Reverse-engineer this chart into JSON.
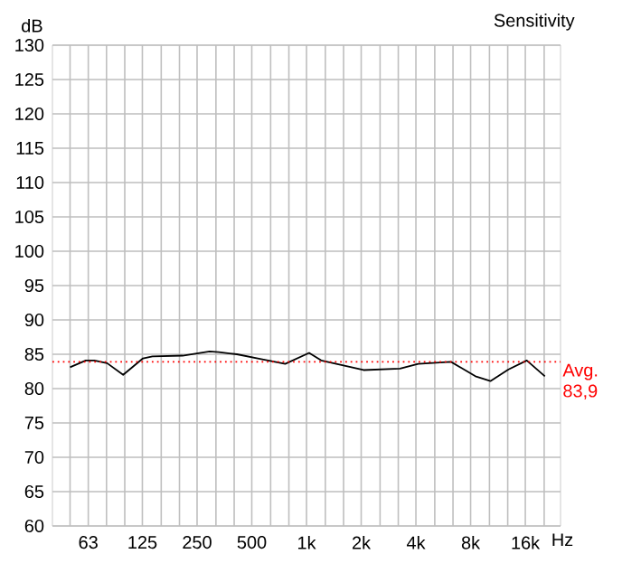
{
  "chart_data": {
    "type": "line",
    "title": "Sensitivity",
    "xlabel": "Hz",
    "ylabel": "dB",
    "log": "x",
    "xlim": [
      40,
      25000
    ],
    "ylim": [
      60,
      130
    ],
    "xticks": [
      63,
      125,
      250,
      500,
      {
        "value": 1000,
        "label": "1k"
      },
      {
        "value": 2000,
        "label": "2k"
      },
      {
        "value": 4000,
        "label": "4k"
      },
      {
        "value": 8000,
        "label": "8k"
      },
      {
        "value": 16000,
        "label": "16k"
      }
    ],
    "yticks": [
      60,
      65,
      70,
      75,
      80,
      85,
      90,
      95,
      100,
      105,
      110,
      115,
      120,
      125,
      130
    ],
    "grid": true,
    "marker": "none",
    "line_style": "solid",
    "x": [
      50,
      61,
      68,
      80,
      98,
      126,
      142,
      208,
      293,
      329,
      414,
      563,
      764,
      1034,
      1205,
      1638,
      2060,
      3270,
      4120,
      6240,
      8500,
      10280,
      12940,
      16300,
      20500
    ],
    "series": [
      {
        "color": "#000000",
        "values": [
          83.1,
          84.1,
          84.1,
          83.7,
          82.0,
          84.4,
          84.7,
          84.8,
          85.4,
          85.3,
          85.0,
          84.3,
          83.6,
          85.2,
          84.1,
          83.3,
          82.7,
          82.9,
          83.6,
          83.9,
          81.8,
          81.1,
          82.8,
          84.1,
          81.8
        ]
      }
    ],
    "ref_lines": [
      {
        "axis": "y",
        "value": 83.9,
        "label": "Avg. 83,9",
        "color": "#ff0000",
        "line_style": "dotted"
      }
    ]
  }
}
